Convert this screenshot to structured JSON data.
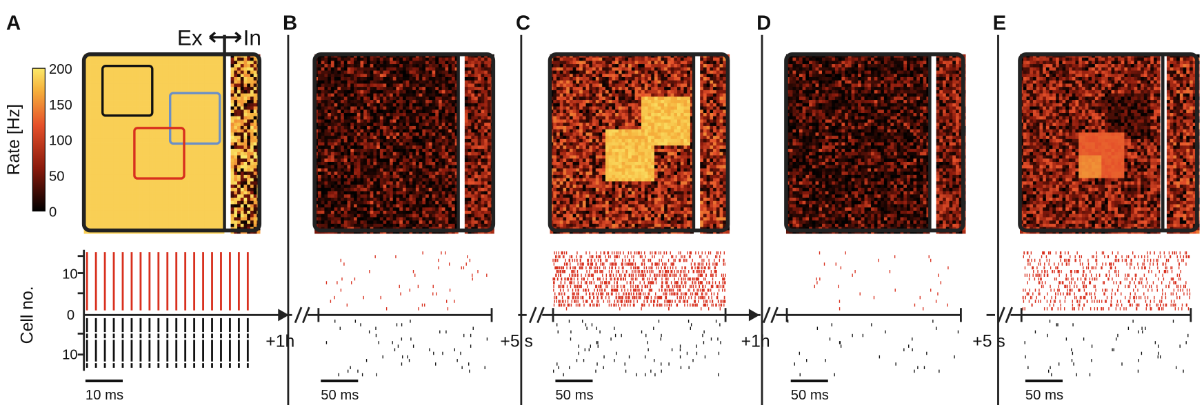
{
  "panels": [
    {
      "label": "A"
    },
    {
      "label": "B"
    },
    {
      "label": "C"
    },
    {
      "label": "D"
    },
    {
      "label": "E"
    }
  ],
  "colorbar": {
    "label": "Rate [Hz]",
    "ticks": [
      "200",
      "150",
      "100",
      "50",
      "0"
    ]
  },
  "ex_in": {
    "ex": "Ex",
    "in": "In"
  },
  "raster_axis": {
    "label": "Cell no.",
    "ticks": [
      "10",
      "0",
      "10"
    ]
  },
  "breaks": [
    "+1h",
    "+5 s",
    "+1h",
    "+5 s"
  ],
  "scale_bars": [
    "10 ms",
    "50 ms",
    "50 ms",
    "50 ms",
    "50 ms"
  ]
}
